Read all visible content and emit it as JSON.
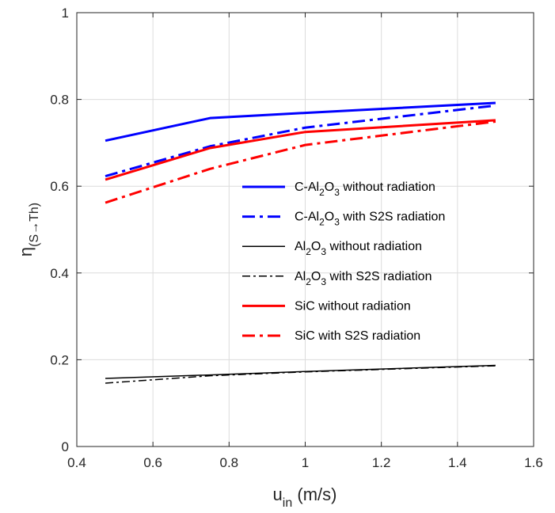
{
  "chart_data": {
    "type": "line",
    "xlabel": {
      "main": "u",
      "sub": "in",
      "rest": " (m/s)"
    },
    "ylabel": {
      "main": "η",
      "sub": "(S→Th)"
    },
    "xlim": [
      0.4,
      1.6
    ],
    "ylim": [
      0,
      1
    ],
    "xticks": [
      0.4,
      0.6,
      0.8,
      1,
      1.2,
      1.4,
      1.6
    ],
    "yticks": [
      0,
      0.2,
      0.4,
      0.6,
      0.8,
      1
    ],
    "xtick_labels": [
      "0.4",
      "0.6",
      "0.8",
      "1",
      "1.2",
      "1.4",
      "1.6"
    ],
    "ytick_labels": [
      "0",
      "0.2",
      "0.4",
      "0.6",
      "0.8",
      "1"
    ],
    "grid": true,
    "legend_position": "center-right",
    "x": [
      0.475,
      0.75,
      1.0,
      1.5
    ],
    "series": [
      {
        "name": "C-Al2O3 without radiation",
        "label": {
          "pre": "C-Al",
          "s1": "2",
          "mid": "O",
          "s2": "3",
          "post": " without radiation"
        },
        "color": "#0000ff",
        "style": "solid",
        "width": 3,
        "values": [
          0.705,
          0.757,
          0.769,
          0.792
        ]
      },
      {
        "name": "C-Al2O3 with S2S radiation",
        "label": {
          "pre": "C-Al",
          "s1": "2",
          "mid": "O",
          "s2": "3",
          "post": " with S2S radiation"
        },
        "color": "#0000ff",
        "style": "dashdot",
        "width": 3,
        "values": [
          0.623,
          0.692,
          0.735,
          0.786
        ]
      },
      {
        "name": "Al2O3 without radiation",
        "label": {
          "pre": "Al",
          "s1": "2",
          "mid": "O",
          "s2": "3",
          "post": " without radiation"
        },
        "color": "#000000",
        "style": "solid",
        "width": 1.5,
        "values": [
          0.157,
          0.165,
          0.173,
          0.187
        ]
      },
      {
        "name": "Al2O3 with S2S radiation",
        "label": {
          "pre": "Al",
          "s1": "2",
          "mid": "O",
          "s2": "3",
          "post": " with S2S radiation"
        },
        "color": "#000000",
        "style": "dashdot",
        "width": 1.5,
        "values": [
          0.146,
          0.163,
          0.172,
          0.186
        ]
      },
      {
        "name": "SiC without radiation",
        "label": {
          "pre": "SiC without radiation",
          "s1": "",
          "mid": "",
          "s2": "",
          "post": ""
        },
        "color": "#ff0000",
        "style": "solid",
        "width": 3,
        "values": [
          0.615,
          0.688,
          0.725,
          0.752
        ]
      },
      {
        "name": "SiC with S2S radiation",
        "label": {
          "pre": "SiC with S2S radiation",
          "s1": "",
          "mid": "",
          "s2": "",
          "post": ""
        },
        "color": "#ff0000",
        "style": "dashdot",
        "width": 3,
        "values": [
          0.562,
          0.64,
          0.695,
          0.749
        ]
      }
    ]
  }
}
